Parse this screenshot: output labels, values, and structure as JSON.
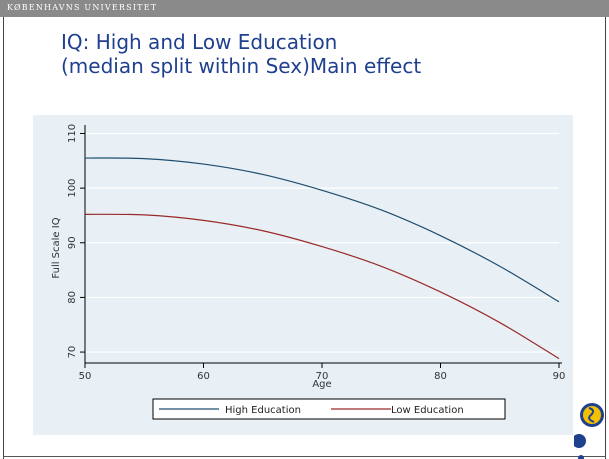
{
  "header": {
    "university": "KØBENHAVNS UNIVERSITET"
  },
  "slide": {
    "title_line1": "IQ: High and Low Education",
    "title_line2": "(median split within Sex)Main effect"
  },
  "colors": {
    "accent": "#1f3f8f",
    "plot_background": "#e8f0f5",
    "high_series": "#1f4d6e",
    "low_series": "#9a2a2a"
  },
  "logo": {
    "icon": "university-seal-icon"
  },
  "chart_data": {
    "type": "line",
    "xlabel": "Age",
    "ylabel": "Full Scale IQ",
    "xlim": [
      50,
      90
    ],
    "ylim": [
      68,
      111
    ],
    "xticks": [
      50,
      60,
      70,
      80,
      90
    ],
    "yticks": [
      70,
      80,
      90,
      100,
      110
    ],
    "grid": "horizontal",
    "legend_position": "bottom",
    "x": [
      50,
      55,
      60,
      65,
      70,
      75,
      80,
      85,
      90
    ],
    "series": [
      {
        "name": "High Education",
        "color": "#1f4d6e",
        "values": [
          105.5,
          105.4,
          104.4,
          102.5,
          99.6,
          96.0,
          91.3,
          85.7,
          79.2
        ]
      },
      {
        "name": "Low Education",
        "color": "#9a2a2a",
        "values": [
          95.2,
          95.1,
          94.1,
          92.2,
          89.3,
          85.7,
          81.0,
          75.4,
          68.8
        ]
      }
    ]
  }
}
